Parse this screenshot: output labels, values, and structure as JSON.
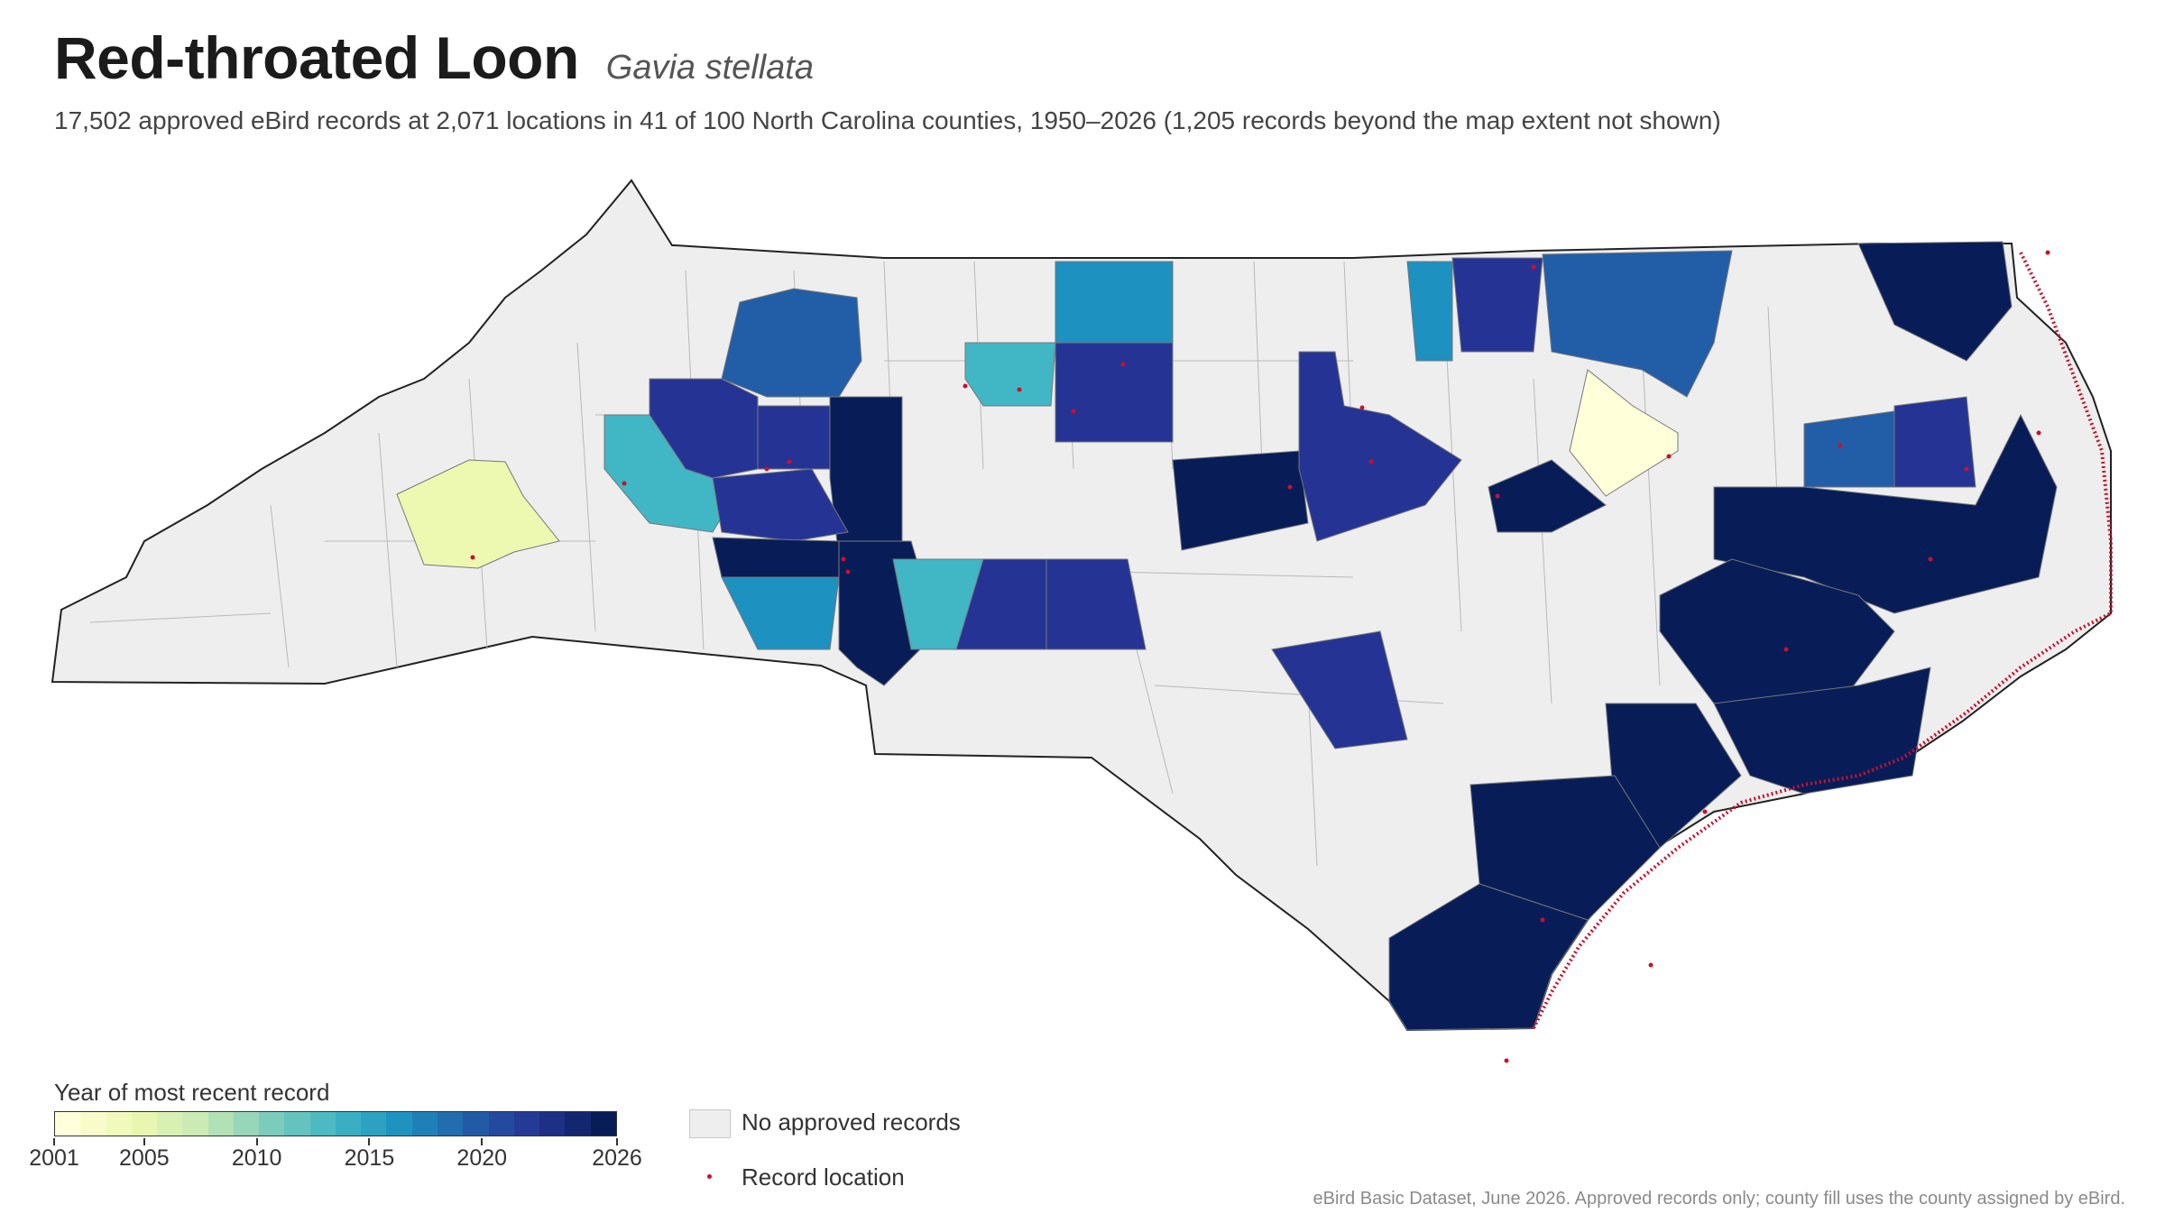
{
  "header": {
    "title": "Red-throated Loon",
    "scientific_name": "Gavia stellata",
    "subtitle": "17,502 approved eBird records at 2,071 locations in 41 of 100 North Carolina counties, 1950–2026 (1,205 records beyond the map extent not shown)"
  },
  "legend": {
    "colorbar_title": "Year of most recent record",
    "year_range": [
      2001,
      2026
    ],
    "ticks": [
      "2001",
      "2005",
      "2010",
      "2015",
      "2020",
      "2026"
    ],
    "no_records_label": "No approved records",
    "record_label": "Record location"
  },
  "source": "eBird Basic Dataset, June 2026. Approved records only; county fill uses the county assigned by eBird.",
  "colors": {
    "no_records": "#eeeeee",
    "record_dot": "#c8102e",
    "scale": [
      "#ffffd9",
      "#edf8b1",
      "#c7e9b4",
      "#7fcdbb",
      "#41b6c4",
      "#1d91c0",
      "#225ea8",
      "#253494",
      "#081d58"
    ]
  }
}
